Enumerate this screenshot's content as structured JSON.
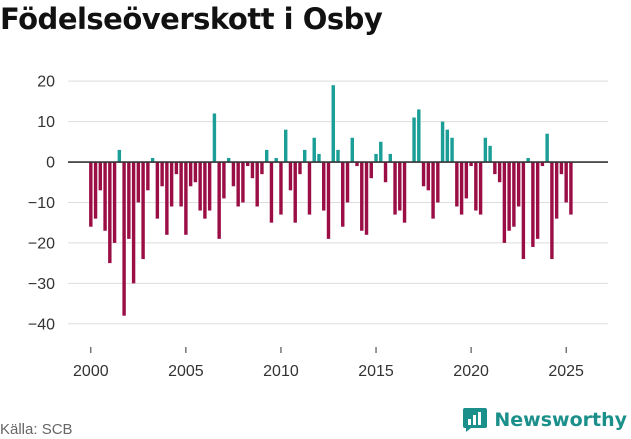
{
  "chart_data": {
    "type": "bar",
    "title": "Födelseöverskott i Osby",
    "xlabel": "",
    "ylabel": "",
    "ylim": [
      -45,
      23
    ],
    "xlim": [
      1998.8,
      2027.2
    ],
    "y_ticks": [
      20,
      10,
      0,
      -10,
      -20,
      -30,
      -40
    ],
    "x_ticks": [
      2000,
      2005,
      2010,
      2015,
      2020,
      2025
    ],
    "grid": true,
    "colors": {
      "positive": "#1a9e97",
      "negative": "#9b0e45",
      "zero_line": "#333333",
      "grid": "#dddddd"
    },
    "period_step": 0.25,
    "x_start": 2000.0,
    "values": [
      -16,
      -14,
      -7,
      -17,
      -25,
      -20,
      3,
      -38,
      -19,
      -30,
      -10,
      -24,
      -7,
      1,
      -14,
      -6,
      -18,
      -11,
      -3,
      -11,
      -18,
      -6,
      -5,
      -12,
      -14,
      -12,
      12,
      -19,
      -9,
      1,
      -6,
      -11,
      -10,
      -1,
      -4,
      -11,
      -3,
      3,
      -15,
      1,
      -13,
      8,
      -7,
      -15,
      -3,
      3,
      -13,
      6,
      2,
      -12,
      -19,
      19,
      3,
      -16,
      -10,
      6,
      -1,
      -17,
      -18,
      -4,
      2,
      5,
      -5,
      2,
      -13,
      -12,
      -15,
      0,
      11,
      13,
      -6,
      -7,
      -14,
      -10,
      10,
      8,
      6,
      -11,
      -13,
      -9,
      -1,
      -12,
      -13,
      6,
      4,
      -3,
      -5,
      -20,
      -17,
      -16,
      -11,
      -24,
      1,
      -21,
      -19,
      -1,
      7,
      -24,
      -14,
      -3,
      -10,
      -13
    ]
  },
  "footer": {
    "source": "Källa: SCB",
    "brand": "Newsworthy"
  }
}
